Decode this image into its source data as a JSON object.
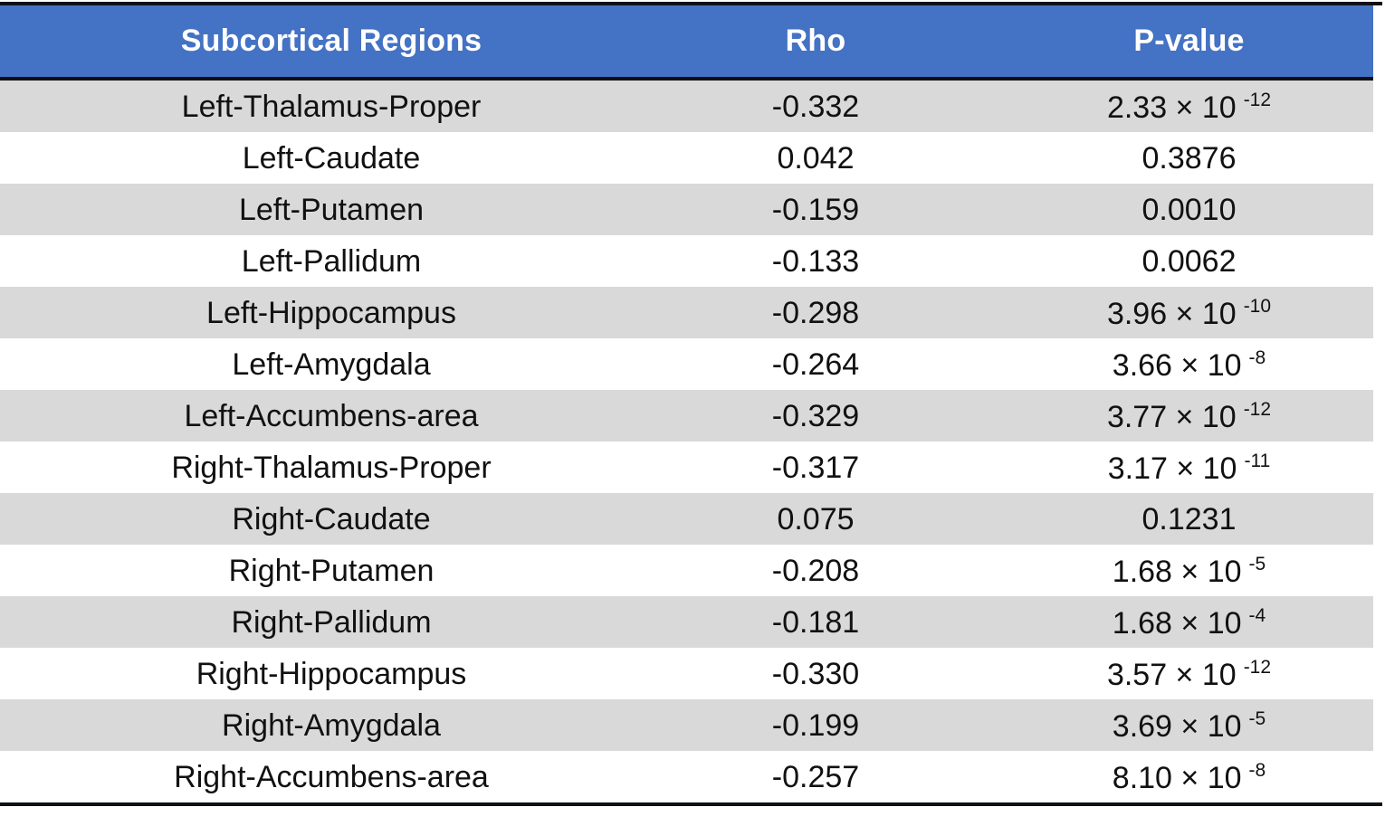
{
  "colors": {
    "header_bg": "#4472C4",
    "header_text": "#FFFFFF",
    "row_stripe": "#D9D9D9",
    "row_white": "#FFFFFF",
    "border": "#0D1117",
    "body_text": "#111111"
  },
  "chart_data": {
    "type": "table",
    "columns": [
      {
        "label": "Subcortical Regions"
      },
      {
        "label": "Rho"
      },
      {
        "label": "P-value"
      }
    ],
    "rows": [
      {
        "region": "Left-Thalamus-Proper",
        "rho": "-0.332",
        "p_base": "2.33 × 10",
        "p_exp": "-12"
      },
      {
        "region": "Left-Caudate",
        "rho": "0.042",
        "p_base": "0.3876",
        "p_exp": ""
      },
      {
        "region": "Left-Putamen",
        "rho": "-0.159",
        "p_base": "0.0010",
        "p_exp": ""
      },
      {
        "region": "Left-Pallidum",
        "rho": "-0.133",
        "p_base": "0.0062",
        "p_exp": ""
      },
      {
        "region": "Left-Hippocampus",
        "rho": "-0.298",
        "p_base": "3.96 × 10",
        "p_exp": "-10"
      },
      {
        "region": "Left-Amygdala",
        "rho": "-0.264",
        "p_base": "3.66 × 10",
        "p_exp": "-8"
      },
      {
        "region": "Left-Accumbens-area",
        "rho": "-0.329",
        "p_base": "3.77 × 10",
        "p_exp": "-12"
      },
      {
        "region": "Right-Thalamus-Proper",
        "rho": "-0.317",
        "p_base": "3.17 × 10",
        "p_exp": "-11"
      },
      {
        "region": "Right-Caudate",
        "rho": "0.075",
        "p_base": "0.1231",
        "p_exp": ""
      },
      {
        "region": "Right-Putamen",
        "rho": "-0.208",
        "p_base": "1.68 × 10",
        "p_exp": "-5"
      },
      {
        "region": "Right-Pallidum",
        "rho": "-0.181",
        "p_base": "1.68 × 10",
        "p_exp": "-4"
      },
      {
        "region": "Right-Hippocampus",
        "rho": "-0.330",
        "p_base": "3.57 × 10",
        "p_exp": "-12"
      },
      {
        "region": "Right-Amygdala",
        "rho": "-0.199",
        "p_base": "3.69 × 10",
        "p_exp": "-5"
      },
      {
        "region": "Right-Accumbens-area",
        "rho": "-0.257",
        "p_base": "8.10 × 10",
        "p_exp": "-8"
      }
    ]
  }
}
